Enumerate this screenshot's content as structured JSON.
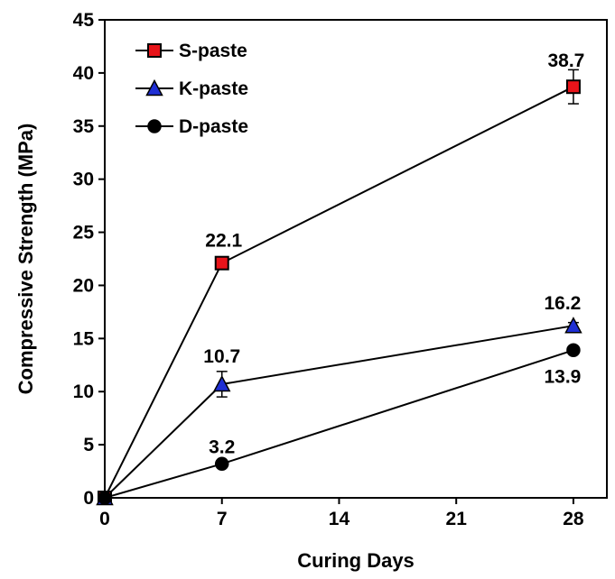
{
  "chart_data": {
    "type": "line",
    "title": "",
    "xlabel": "Curing Days",
    "ylabel": "Compressive Strength (MPa)",
    "xlim": [
      0,
      30
    ],
    "ylim": [
      0,
      45
    ],
    "xticks": [
      0,
      7,
      14,
      21,
      28
    ],
    "yticks": [
      0,
      5,
      10,
      15,
      20,
      25,
      30,
      35,
      40,
      45
    ],
    "grid": false,
    "legend_position": "top-left",
    "series": [
      {
        "name": "S-paste",
        "marker": "square",
        "color": "#e8141a",
        "x": [
          0,
          7,
          28
        ],
        "values": [
          0,
          22.1,
          38.7
        ],
        "errors": [
          0,
          0,
          1.6
        ],
        "labels": [
          "",
          "22.1",
          "38.7"
        ],
        "label_positions": [
          "",
          "above",
          "above"
        ]
      },
      {
        "name": "K-paste",
        "marker": "triangle",
        "color": "#1f2fd4",
        "x": [
          0,
          7,
          28
        ],
        "values": [
          0,
          10.7,
          16.2
        ],
        "errors": [
          0,
          1.2,
          0.3
        ],
        "labels": [
          "",
          "10.7",
          "16.2"
        ],
        "label_positions": [
          "",
          "above",
          "above"
        ]
      },
      {
        "name": "D-paste",
        "marker": "circle",
        "color": "#000000",
        "x": [
          0,
          7,
          28
        ],
        "values": [
          0,
          3.2,
          13.9
        ],
        "errors": [
          0,
          0,
          0
        ],
        "labels": [
          "",
          "3.2",
          "13.9"
        ],
        "label_positions": [
          "",
          "above",
          "below"
        ]
      }
    ]
  }
}
